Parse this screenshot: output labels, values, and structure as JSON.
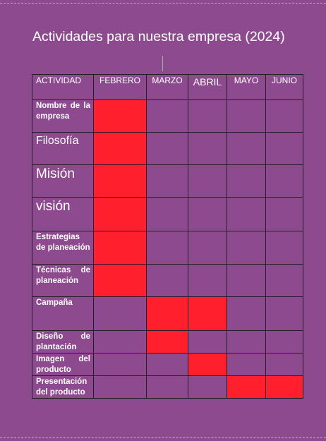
{
  "title": "Actividades para nuestra empresa (2024)",
  "columns": [
    "ACTIVIDAD",
    "FEBRERO",
    "MARZO",
    "ABRIL",
    "MAYO",
    "JUNIO"
  ],
  "rows": [
    {
      "activity": "Nombre de la empresa",
      "active": [
        "FEBRERO"
      ]
    },
    {
      "activity": "Filosofía",
      "active": [
        "FEBRERO"
      ]
    },
    {
      "activity": "Misión",
      "active": [
        "FEBRERO"
      ]
    },
    {
      "activity": "visión",
      "active": [
        "FEBRERO"
      ]
    },
    {
      "activity": "Estrategias de planeación",
      "active": [
        "FEBRERO"
      ]
    },
    {
      "activity": "Técnicas de planeación",
      "active": [
        "FEBRERO"
      ]
    },
    {
      "activity": "Campaña",
      "active": [
        "MARZO",
        "ABRIL"
      ]
    },
    {
      "activity": "Diseño de plantación",
      "active": [
        "MARZO"
      ]
    },
    {
      "activity": "Imagen del producto",
      "active": [
        "ABRIL"
      ]
    },
    {
      "activity": "Presentación del producto",
      "active": [
        "MAYO",
        "JUNIO"
      ]
    }
  ],
  "colors": {
    "background": "#8e4a8f",
    "active_cell": "#ff1f2d"
  }
}
